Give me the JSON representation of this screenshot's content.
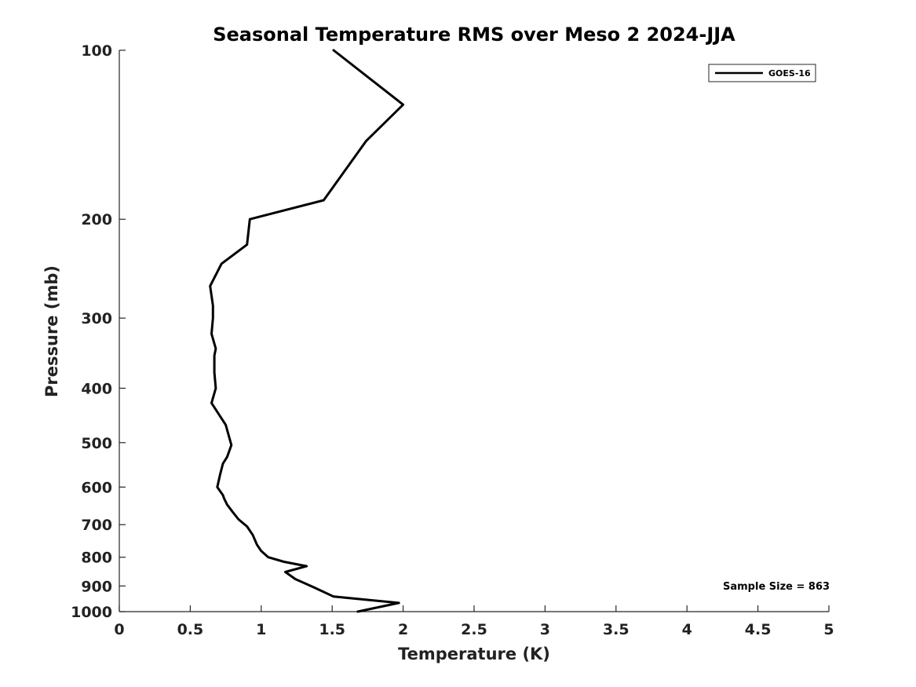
{
  "chart_data": {
    "type": "line",
    "title": "Seasonal Temperature RMS over Meso 2  2024-JJA",
    "xlabel": "Temperature (K)",
    "ylabel": "Pressure (mb)",
    "xlim": [
      0,
      5
    ],
    "ylim": [
      100,
      1000
    ],
    "y_scale": "log",
    "y_reversed": true,
    "xticks": [
      0,
      0.5,
      1,
      1.5,
      2,
      2.5,
      3,
      3.5,
      4,
      4.5,
      5
    ],
    "xtick_labels": [
      "0",
      "0.5",
      "1",
      "1.5",
      "2",
      "2.5",
      "3",
      "3.5",
      "4",
      "4.5",
      "5"
    ],
    "yticks": [
      100,
      200,
      300,
      400,
      500,
      600,
      700,
      800,
      900,
      1000
    ],
    "ytick_labels": [
      "100",
      "200",
      "300",
      "400",
      "500",
      "600",
      "700",
      "800",
      "900",
      "1000"
    ],
    "grid": false,
    "legend_position": "top-right",
    "series": [
      {
        "name": "GOES-16",
        "color": "#000000",
        "points": [
          {
            "x": 1.68,
            "y": 1000
          },
          {
            "x": 1.97,
            "y": 965
          },
          {
            "x": 1.51,
            "y": 940
          },
          {
            "x": 1.37,
            "y": 905
          },
          {
            "x": 1.24,
            "y": 875
          },
          {
            "x": 1.17,
            "y": 850
          },
          {
            "x": 1.32,
            "y": 830
          },
          {
            "x": 1.16,
            "y": 815
          },
          {
            "x": 1.05,
            "y": 800
          },
          {
            "x": 1.0,
            "y": 780
          },
          {
            "x": 0.97,
            "y": 760
          },
          {
            "x": 0.94,
            "y": 730
          },
          {
            "x": 0.9,
            "y": 705
          },
          {
            "x": 0.84,
            "y": 685
          },
          {
            "x": 0.8,
            "y": 665
          },
          {
            "x": 0.76,
            "y": 645
          },
          {
            "x": 0.74,
            "y": 630
          },
          {
            "x": 0.73,
            "y": 620
          },
          {
            "x": 0.69,
            "y": 600
          },
          {
            "x": 0.71,
            "y": 570
          },
          {
            "x": 0.73,
            "y": 545
          },
          {
            "x": 0.76,
            "y": 530
          },
          {
            "x": 0.79,
            "y": 505
          },
          {
            "x": 0.75,
            "y": 465
          },
          {
            "x": 0.65,
            "y": 425
          },
          {
            "x": 0.68,
            "y": 400
          },
          {
            "x": 0.67,
            "y": 375
          },
          {
            "x": 0.67,
            "y": 350
          },
          {
            "x": 0.68,
            "y": 340
          },
          {
            "x": 0.65,
            "y": 320
          },
          {
            "x": 0.66,
            "y": 300
          },
          {
            "x": 0.66,
            "y": 285
          },
          {
            "x": 0.64,
            "y": 263
          },
          {
            "x": 0.72,
            "y": 240
          },
          {
            "x": 0.9,
            "y": 222
          },
          {
            "x": 0.92,
            "y": 200
          },
          {
            "x": 1.44,
            "y": 185
          },
          {
            "x": 1.74,
            "y": 145
          },
          {
            "x": 2.0,
            "y": 125
          },
          {
            "x": 1.51,
            "y": 100
          }
        ]
      }
    ],
    "annotation": "Sample Size = 863"
  }
}
